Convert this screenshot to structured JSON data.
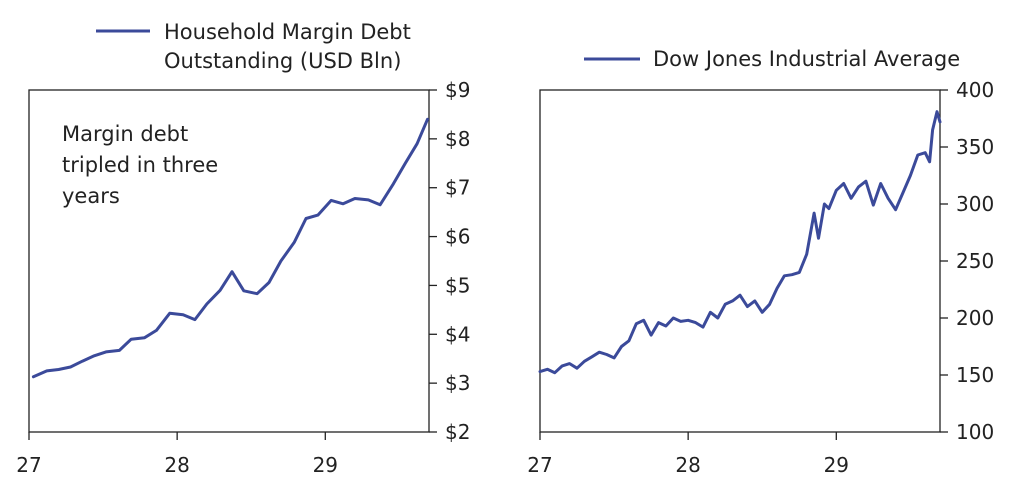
{
  "chart_data": [
    {
      "type": "line",
      "legend": "Household Margin Debt Outstanding (USD Bln)",
      "legend_lines": [
        "Household Margin Debt",
        "Outstanding (USD Bln)"
      ],
      "legend_position": "top-center",
      "annotation_lines": [
        "Margin debt",
        "tripled in three",
        "years"
      ],
      "annotation_position": "top-left",
      "xlim": [
        27,
        29.7
      ],
      "ylim": [
        2,
        9
      ],
      "y_axis_side": "right",
      "x_ticks": [
        27,
        28,
        29
      ],
      "x_tick_labels": [
        "27",
        "28",
        "29"
      ],
      "y_ticks": [
        2,
        3,
        4,
        5,
        6,
        7,
        8,
        9
      ],
      "y_tick_labels": [
        "$2",
        "$3",
        "$4",
        "$5",
        "$6",
        "$7",
        "$8",
        "$9"
      ],
      "series": [
        {
          "name": "Household Margin Debt Outstanding (USD Bln)",
          "color": "#3b4a9a",
          "x": [
            27.03,
            27.12,
            27.2,
            27.28,
            27.36,
            27.44,
            27.52,
            27.61,
            27.69,
            27.78,
            27.86,
            27.95,
            28.04,
            28.12,
            28.2,
            28.29,
            28.37,
            28.45,
            28.54,
            28.62,
            28.7,
            28.79,
            28.87,
            28.95,
            29.04,
            29.12,
            29.2,
            29.29,
            29.37,
            29.46,
            29.54,
            29.62,
            29.69
          ],
          "values": [
            3.13,
            3.25,
            3.28,
            3.33,
            3.45,
            3.56,
            3.64,
            3.67,
            3.9,
            3.93,
            4.08,
            4.43,
            4.4,
            4.3,
            4.62,
            4.9,
            5.28,
            4.89,
            4.83,
            5.06,
            5.5,
            5.88,
            6.37,
            6.44,
            6.74,
            6.67,
            6.78,
            6.75,
            6.65,
            7.08,
            7.5,
            7.9,
            8.4
          ]
        }
      ]
    },
    {
      "type": "line",
      "legend": "Dow Jones Industrial Average",
      "legend_position": "top-center",
      "xlim": [
        27,
        29.7
      ],
      "ylim": [
        100,
        400
      ],
      "y_axis_side": "right",
      "x_ticks": [
        27,
        28,
        29
      ],
      "x_tick_labels": [
        "27",
        "28",
        "29"
      ],
      "y_ticks": [
        100,
        150,
        200,
        250,
        300,
        350,
        400
      ],
      "y_tick_labels": [
        "100",
        "150",
        "200",
        "250",
        "300",
        "350",
        "400"
      ],
      "series": [
        {
          "name": "Dow Jones Industrial Average",
          "color": "#3b4a9a",
          "x": [
            27.0,
            27.05,
            27.1,
            27.15,
            27.2,
            27.25,
            27.3,
            27.35,
            27.4,
            27.45,
            27.5,
            27.55,
            27.6,
            27.65,
            27.7,
            27.75,
            27.8,
            27.85,
            27.9,
            27.95,
            28.0,
            28.05,
            28.1,
            28.15,
            28.2,
            28.25,
            28.3,
            28.35,
            28.4,
            28.45,
            28.5,
            28.55,
            28.6,
            28.65,
            28.7,
            28.75,
            28.8,
            28.85,
            28.88,
            28.92,
            28.95,
            29.0,
            29.05,
            29.1,
            29.15,
            29.2,
            29.25,
            29.3,
            29.35,
            29.4,
            29.45,
            29.5,
            29.55,
            29.6,
            29.63,
            29.65,
            29.68,
            29.7
          ],
          "values": [
            153,
            155,
            152,
            158,
            160,
            156,
            162,
            166,
            170,
            168,
            165,
            175,
            180,
            195,
            198,
            185,
            196,
            193,
            200,
            197,
            198,
            196,
            192,
            205,
            200,
            212,
            215,
            220,
            210,
            215,
            205,
            212,
            226,
            237,
            238,
            240,
            256,
            292,
            270,
            300,
            296,
            312,
            318,
            305,
            315,
            320,
            299,
            318,
            305,
            295,
            310,
            325,
            343,
            345,
            337,
            365,
            381,
            372
          ]
        }
      ]
    }
  ]
}
